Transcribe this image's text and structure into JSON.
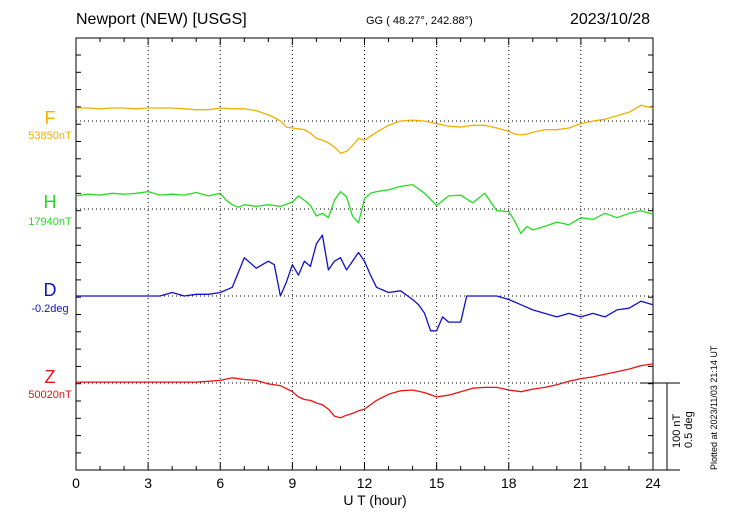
{
  "header": {
    "station": "Newport (NEW)  [USGS]",
    "coords": "GG ( 48.27°, 242.88°)",
    "date": "2023/10/28"
  },
  "scale": {
    "nt": "100 nT",
    "deg": "0.5 deg"
  },
  "plotted_note": "Plotted at 2023/11/03 21:14 UT",
  "colors": {
    "F": "#f0b000",
    "H": "#22dd22",
    "D": "#1010cc",
    "Z": "#ee1111"
  },
  "chart_data": {
    "type": "line",
    "xlabel": "U T (hour)",
    "xlim": [
      0,
      24
    ],
    "x_ticks": [
      "0",
      "3",
      "6",
      "9",
      "12",
      "15",
      "18",
      "21",
      "24"
    ],
    "grid": true,
    "series": [
      {
        "name": "F",
        "baseline_label": "53850nT",
        "unit": "nT",
        "x": [
          0,
          0.5,
          1,
          1.5,
          2,
          2.5,
          3,
          3.5,
          4,
          4.5,
          5,
          5.5,
          6,
          6.5,
          7,
          7.5,
          8,
          8.25,
          8.5,
          8.75,
          9,
          9.25,
          9.5,
          9.75,
          10,
          10.25,
          10.5,
          10.75,
          11,
          11.25,
          11.5,
          11.75,
          12,
          12.5,
          13,
          13.5,
          14,
          14.5,
          15,
          15.5,
          16,
          16.5,
          17,
          17.5,
          18,
          18.25,
          18.5,
          18.75,
          19,
          19.5,
          20,
          20.5,
          21,
          21.5,
          22,
          22.5,
          23,
          23.5,
          24
        ],
        "values": [
          15,
          15,
          14,
          15,
          15,
          14,
          15,
          15,
          15,
          14,
          13,
          13,
          15,
          14,
          14,
          12,
          7,
          4,
          0,
          -7,
          -8,
          -9,
          -10,
          -14,
          -20,
          -22,
          -25,
          -30,
          -37,
          -35,
          -28,
          -20,
          -22,
          -13,
          -5,
          0,
          1,
          0,
          -3,
          -6,
          -7,
          -5,
          -5,
          -8,
          -12,
          -15,
          -16,
          -15,
          -13,
          -10,
          -10,
          -8,
          -3,
          0,
          2,
          6,
          10,
          18,
          15
        ]
      },
      {
        "name": "H",
        "baseline_label": "17940nT",
        "unit": "nT",
        "x": [
          0,
          0.5,
          1,
          1.5,
          2,
          2.5,
          3,
          3.5,
          4,
          4.5,
          5,
          5.5,
          6,
          6.25,
          6.5,
          6.75,
          7,
          7.5,
          8,
          8.5,
          9,
          9.25,
          9.5,
          9.75,
          10,
          10.25,
          10.5,
          10.75,
          11,
          11.25,
          11.5,
          11.75,
          12,
          12.25,
          12.5,
          13,
          13.5,
          14,
          14.5,
          15,
          15.5,
          16,
          16.5,
          17,
          17.5,
          18,
          18.25,
          18.5,
          18.75,
          19,
          19.5,
          20,
          20.5,
          21,
          21.5,
          22,
          22.5,
          23,
          23.5,
          24
        ],
        "values": [
          15,
          17,
          16,
          18,
          17,
          18,
          20,
          16,
          17,
          16,
          19,
          15,
          18,
          10,
          5,
          2,
          5,
          3,
          5,
          3,
          8,
          15,
          10,
          4,
          -8,
          -5,
          -10,
          10,
          20,
          14,
          -8,
          -16,
          12,
          18,
          20,
          22,
          26,
          28,
          18,
          4,
          15,
          16,
          7,
          18,
          -2,
          -3,
          -14,
          -28,
          -20,
          -24,
          -20,
          -15,
          -18,
          -10,
          -12,
          -5,
          -10,
          -5,
          -2,
          -6
        ]
      },
      {
        "name": "D",
        "baseline_label": "-0.2deg",
        "unit": "deg",
        "x": [
          0,
          1,
          2,
          3,
          3.5,
          4,
          4.5,
          5,
          5.5,
          6,
          6.5,
          7,
          7.5,
          8,
          8.25,
          8.5,
          8.75,
          9,
          9.25,
          9.5,
          9.75,
          10,
          10.25,
          10.5,
          10.75,
          11,
          11.25,
          11.5,
          11.75,
          12,
          12.25,
          12.5,
          13,
          13.5,
          14,
          14.25,
          14.5,
          14.75,
          15,
          15.25,
          15.5,
          15.75,
          16,
          16.25,
          16.5,
          16.75,
          17,
          17.5,
          18,
          18.5,
          19,
          19.5,
          20,
          20.5,
          21,
          21.5,
          22,
          22.5,
          23,
          23.5,
          24
        ],
        "values": [
          0.0,
          0.0,
          0.0,
          0.0,
          0.0,
          0.02,
          0.0,
          0.01,
          0.01,
          0.02,
          0.05,
          0.22,
          0.16,
          0.2,
          0.18,
          0.0,
          0.08,
          0.18,
          0.12,
          0.2,
          0.17,
          0.3,
          0.35,
          0.15,
          0.2,
          0.22,
          0.15,
          0.2,
          0.25,
          0.2,
          0.12,
          0.05,
          0.02,
          0.03,
          -0.02,
          -0.05,
          -0.1,
          -0.2,
          -0.2,
          -0.12,
          -0.15,
          -0.15,
          -0.15,
          0.0,
          0.0,
          0.0,
          0.0,
          0.0,
          -0.02,
          -0.05,
          -0.08,
          -0.1,
          -0.12,
          -0.1,
          -0.12,
          -0.1,
          -0.12,
          -0.08,
          -0.07,
          -0.03,
          -0.05
        ]
      },
      {
        "name": "Z",
        "baseline_label": "50020nT",
        "unit": "nT",
        "x": [
          0,
          1,
          2,
          3,
          4,
          5,
          5.5,
          6,
          6.5,
          7,
          7.5,
          8,
          8.5,
          9,
          9.25,
          9.5,
          9.75,
          10,
          10.25,
          10.5,
          10.75,
          11,
          11.25,
          11.5,
          11.75,
          12,
          12.5,
          13,
          13.5,
          14,
          14.5,
          15,
          15.5,
          16,
          16.5,
          17,
          17.5,
          18,
          18.5,
          19,
          19.5,
          20,
          20.5,
          21,
          21.5,
          22,
          22.5,
          23,
          23.5,
          24
        ],
        "values": [
          1,
          1,
          1,
          1,
          1,
          1,
          2,
          3,
          6,
          4,
          3,
          -1,
          -3,
          -10,
          -16,
          -19,
          -20,
          -23,
          -25,
          -30,
          -38,
          -40,
          -37,
          -35,
          -32,
          -30,
          -20,
          -13,
          -9,
          -8,
          -11,
          -16,
          -14,
          -10,
          -6,
          -5,
          -5,
          -8,
          -10,
          -7,
          -5,
          -2,
          2,
          5,
          7,
          10,
          13,
          16,
          20,
          22
        ]
      }
    ]
  }
}
